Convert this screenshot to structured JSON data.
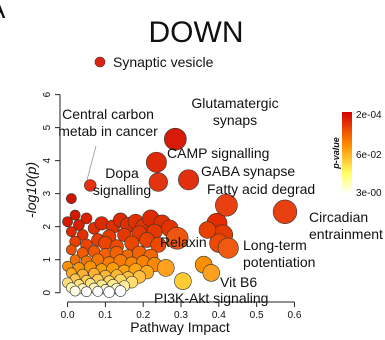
{
  "panel_letter": "A",
  "chart_data": {
    "type": "scatter",
    "title": "DOWN",
    "xlabel": "Pathway Impact",
    "ylabel": "-log10(p)",
    "xlim": [
      -0.02,
      0.62
    ],
    "ylim": [
      -0.1,
      6.2
    ],
    "x_ticks": [
      0.0,
      0.1,
      0.2,
      0.3,
      0.4,
      0.5,
      0.6
    ],
    "y_ticks": [
      0,
      1,
      2,
      3,
      4,
      5,
      6
    ],
    "legend": {
      "label": "Synaptic vesicle",
      "color": "#e02010",
      "placement": "top"
    },
    "colorbar": {
      "title": "p-value",
      "tick_labels": [
        "2e-04",
        "6e-02",
        "3e-00"
      ],
      "colors": [
        "#d40000",
        "#ff8c00",
        "#ffff66",
        "#ffffff"
      ]
    },
    "labeled_points": [
      {
        "label": "Central carbon metab in cancer",
        "x": 0.06,
        "y": 3.25,
        "size": 0.04,
        "color": "#e83010"
      },
      {
        "label": "Glutamatergic synaps",
        "x": 0.285,
        "y": 4.65,
        "size": 0.1,
        "color": "#d81a08"
      },
      {
        "label": "CAMP signalling",
        "x": 0.235,
        "y": 3.95,
        "size": 0.09,
        "color": "#de2a08"
      },
      {
        "label": "Dopa signalling",
        "x": 0.24,
        "y": 3.35,
        "size": 0.08,
        "color": "#e03510"
      },
      {
        "label": "GABA synapse",
        "x": 0.32,
        "y": 3.42,
        "size": 0.09,
        "color": "#e03010"
      },
      {
        "label": "Fatty acid degrad",
        "x": 0.42,
        "y": 2.65,
        "size": 0.1,
        "color": "#e84010"
      },
      {
        "label": "Circadian entrainment",
        "x": 0.575,
        "y": 2.45,
        "size": 0.11,
        "color": "#e84010"
      },
      {
        "label": "Relaxin",
        "x": 0.29,
        "y": 1.65,
        "size": 0.1,
        "color": "#ee5510"
      },
      {
        "label": "Long-term potentiation",
        "x": 0.425,
        "y": 1.35,
        "size": 0.09,
        "color": "#f05a10"
      },
      {
        "label": "Vit B6",
        "x": 0.305,
        "y": 0.35,
        "size": 0.07,
        "color": "#ffcc33"
      },
      {
        "label": "PI3K-Akt signaling",
        "x": 0.26,
        "y": 0.75,
        "size": 0.07,
        "color": "#ffa020"
      }
    ],
    "points": [
      {
        "x": 0.01,
        "y": 2.85,
        "size": 0.03,
        "color": "#cc1500"
      },
      {
        "x": 0.02,
        "y": 2.35,
        "size": 0.03,
        "color": "#d41a00"
      },
      {
        "x": 0.0,
        "y": 2.15,
        "size": 0.03,
        "color": "#d41a00"
      },
      {
        "x": 0.03,
        "y": 2.05,
        "size": 0.035,
        "color": "#d82000"
      },
      {
        "x": 0.05,
        "y": 2.25,
        "size": 0.035,
        "color": "#da2200"
      },
      {
        "x": 0.01,
        "y": 1.85,
        "size": 0.03,
        "color": "#dd2800"
      },
      {
        "x": 0.04,
        "y": 1.75,
        "size": 0.035,
        "color": "#e03000"
      },
      {
        "x": 0.07,
        "y": 1.95,
        "size": 0.04,
        "color": "#e03000"
      },
      {
        "x": 0.09,
        "y": 2.1,
        "size": 0.05,
        "color": "#de2800"
      },
      {
        "x": 0.12,
        "y": 2.0,
        "size": 0.05,
        "color": "#e03000"
      },
      {
        "x": 0.14,
        "y": 2.2,
        "size": 0.055,
        "color": "#de2a00"
      },
      {
        "x": 0.16,
        "y": 2.05,
        "size": 0.06,
        "color": "#e03000"
      },
      {
        "x": 0.18,
        "y": 2.15,
        "size": 0.06,
        "color": "#e03000"
      },
      {
        "x": 0.2,
        "y": 2.0,
        "size": 0.06,
        "color": "#e23300"
      },
      {
        "x": 0.22,
        "y": 2.25,
        "size": 0.07,
        "color": "#de2a00"
      },
      {
        "x": 0.25,
        "y": 2.1,
        "size": 0.07,
        "color": "#e03000"
      },
      {
        "x": 0.27,
        "y": 1.95,
        "size": 0.07,
        "color": "#e23300"
      },
      {
        "x": 0.23,
        "y": 1.85,
        "size": 0.06,
        "color": "#e43800"
      },
      {
        "x": 0.19,
        "y": 1.8,
        "size": 0.06,
        "color": "#e43800"
      },
      {
        "x": 0.15,
        "y": 1.75,
        "size": 0.05,
        "color": "#e43800"
      },
      {
        "x": 0.11,
        "y": 1.7,
        "size": 0.05,
        "color": "#e63c00"
      },
      {
        "x": 0.08,
        "y": 1.6,
        "size": 0.045,
        "color": "#e63c00"
      },
      {
        "x": 0.02,
        "y": 1.55,
        "size": 0.035,
        "color": "#e84000"
      },
      {
        "x": 0.05,
        "y": 1.45,
        "size": 0.04,
        "color": "#ea4400"
      },
      {
        "x": 0.1,
        "y": 1.5,
        "size": 0.05,
        "color": "#ea4400"
      },
      {
        "x": 0.13,
        "y": 1.4,
        "size": 0.05,
        "color": "#ec4a00"
      },
      {
        "x": 0.17,
        "y": 1.5,
        "size": 0.055,
        "color": "#ea4600"
      },
      {
        "x": 0.21,
        "y": 1.6,
        "size": 0.06,
        "color": "#e84200"
      },
      {
        "x": 0.24,
        "y": 1.45,
        "size": 0.06,
        "color": "#ec4a00"
      },
      {
        "x": 0.395,
        "y": 2.1,
        "size": 0.09,
        "color": "#e62a00"
      },
      {
        "x": 0.41,
        "y": 1.75,
        "size": 0.09,
        "color": "#e63a00"
      },
      {
        "x": 0.4,
        "y": 1.5,
        "size": 0.08,
        "color": "#ec4a00"
      },
      {
        "x": 0.37,
        "y": 1.9,
        "size": 0.07,
        "color": "#e84000"
      },
      {
        "x": 0.01,
        "y": 1.3,
        "size": 0.03,
        "color": "#ee5200"
      },
      {
        "x": 0.04,
        "y": 1.2,
        "size": 0.035,
        "color": "#f05a00"
      },
      {
        "x": 0.07,
        "y": 1.25,
        "size": 0.04,
        "color": "#f05800"
      },
      {
        "x": 0.1,
        "y": 1.15,
        "size": 0.045,
        "color": "#f26000"
      },
      {
        "x": 0.13,
        "y": 1.2,
        "size": 0.05,
        "color": "#f26000"
      },
      {
        "x": 0.16,
        "y": 1.1,
        "size": 0.05,
        "color": "#f46800"
      },
      {
        "x": 0.19,
        "y": 1.2,
        "size": 0.055,
        "color": "#f26200"
      },
      {
        "x": 0.22,
        "y": 1.1,
        "size": 0.055,
        "color": "#f46800"
      },
      {
        "x": 0.02,
        "y": 1.0,
        "size": 0.03,
        "color": "#f47000"
      },
      {
        "x": 0.05,
        "y": 0.95,
        "size": 0.035,
        "color": "#f67400"
      },
      {
        "x": 0.08,
        "y": 1.0,
        "size": 0.04,
        "color": "#f67400"
      },
      {
        "x": 0.11,
        "y": 0.9,
        "size": 0.045,
        "color": "#f87c00"
      },
      {
        "x": 0.14,
        "y": 0.95,
        "size": 0.05,
        "color": "#f87c00"
      },
      {
        "x": 0.17,
        "y": 0.88,
        "size": 0.05,
        "color": "#fa8400"
      },
      {
        "x": 0.2,
        "y": 0.92,
        "size": 0.05,
        "color": "#fa8200"
      },
      {
        "x": 0.23,
        "y": 0.85,
        "size": 0.055,
        "color": "#fa8800"
      },
      {
        "x": 0.36,
        "y": 0.85,
        "size": 0.07,
        "color": "#fa9000"
      },
      {
        "x": 0.38,
        "y": 0.6,
        "size": 0.07,
        "color": "#fca020"
      },
      {
        "x": 0.0,
        "y": 0.8,
        "size": 0.03,
        "color": "#fc9000"
      },
      {
        "x": 0.03,
        "y": 0.75,
        "size": 0.035,
        "color": "#fc9400"
      },
      {
        "x": 0.06,
        "y": 0.78,
        "size": 0.04,
        "color": "#fc9400"
      },
      {
        "x": 0.09,
        "y": 0.7,
        "size": 0.04,
        "color": "#fe9c00"
      },
      {
        "x": 0.12,
        "y": 0.72,
        "size": 0.045,
        "color": "#fe9c00"
      },
      {
        "x": 0.15,
        "y": 0.65,
        "size": 0.045,
        "color": "#ffa410"
      },
      {
        "x": 0.18,
        "y": 0.68,
        "size": 0.05,
        "color": "#ffa410"
      },
      {
        "x": 0.21,
        "y": 0.62,
        "size": 0.05,
        "color": "#ffaa20"
      },
      {
        "x": 0.01,
        "y": 0.6,
        "size": 0.03,
        "color": "#ffac20"
      },
      {
        "x": 0.04,
        "y": 0.55,
        "size": 0.035,
        "color": "#ffb030"
      },
      {
        "x": 0.07,
        "y": 0.58,
        "size": 0.035,
        "color": "#ffb030"
      },
      {
        "x": 0.1,
        "y": 0.5,
        "size": 0.04,
        "color": "#ffb838"
      },
      {
        "x": 0.13,
        "y": 0.52,
        "size": 0.04,
        "color": "#ffb838"
      },
      {
        "x": 0.16,
        "y": 0.45,
        "size": 0.045,
        "color": "#ffc040"
      },
      {
        "x": 0.19,
        "y": 0.48,
        "size": 0.045,
        "color": "#ffc040"
      },
      {
        "x": 0.02,
        "y": 0.42,
        "size": 0.03,
        "color": "#ffc850"
      },
      {
        "x": 0.05,
        "y": 0.38,
        "size": 0.03,
        "color": "#ffcc55"
      },
      {
        "x": 0.08,
        "y": 0.4,
        "size": 0.035,
        "color": "#ffcc55"
      },
      {
        "x": 0.11,
        "y": 0.35,
        "size": 0.035,
        "color": "#ffd460"
      },
      {
        "x": 0.14,
        "y": 0.38,
        "size": 0.04,
        "color": "#ffd460"
      },
      {
        "x": 0.17,
        "y": 0.32,
        "size": 0.04,
        "color": "#ffdc70"
      },
      {
        "x": 0.0,
        "y": 0.3,
        "size": 0.03,
        "color": "#ffe078"
      },
      {
        "x": 0.03,
        "y": 0.25,
        "size": 0.03,
        "color": "#ffe480"
      },
      {
        "x": 0.06,
        "y": 0.28,
        "size": 0.03,
        "color": "#ffe480"
      },
      {
        "x": 0.09,
        "y": 0.22,
        "size": 0.035,
        "color": "#ffec90"
      },
      {
        "x": 0.12,
        "y": 0.24,
        "size": 0.035,
        "color": "#ffec90"
      },
      {
        "x": 0.15,
        "y": 0.2,
        "size": 0.035,
        "color": "#fff0a0"
      },
      {
        "x": 0.01,
        "y": 0.15,
        "size": 0.03,
        "color": "#fff4b0"
      },
      {
        "x": 0.04,
        "y": 0.12,
        "size": 0.03,
        "color": "#fff6c0"
      },
      {
        "x": 0.07,
        "y": 0.14,
        "size": 0.03,
        "color": "#fff6c0"
      },
      {
        "x": 0.1,
        "y": 0.1,
        "size": 0.03,
        "color": "#fffad0"
      },
      {
        "x": 0.13,
        "y": 0.12,
        "size": 0.035,
        "color": "#fffad0"
      },
      {
        "x": 0.02,
        "y": 0.05,
        "size": 0.03,
        "color": "#fffde8"
      },
      {
        "x": 0.05,
        "y": 0.03,
        "size": 0.03,
        "color": "#ffffff"
      },
      {
        "x": 0.08,
        "y": 0.04,
        "size": 0.03,
        "color": "#ffffff"
      },
      {
        "x": 0.11,
        "y": 0.02,
        "size": 0.035,
        "color": "#ffffff"
      },
      {
        "x": 0.14,
        "y": 0.05,
        "size": 0.035,
        "color": "#ffffff"
      }
    ]
  }
}
